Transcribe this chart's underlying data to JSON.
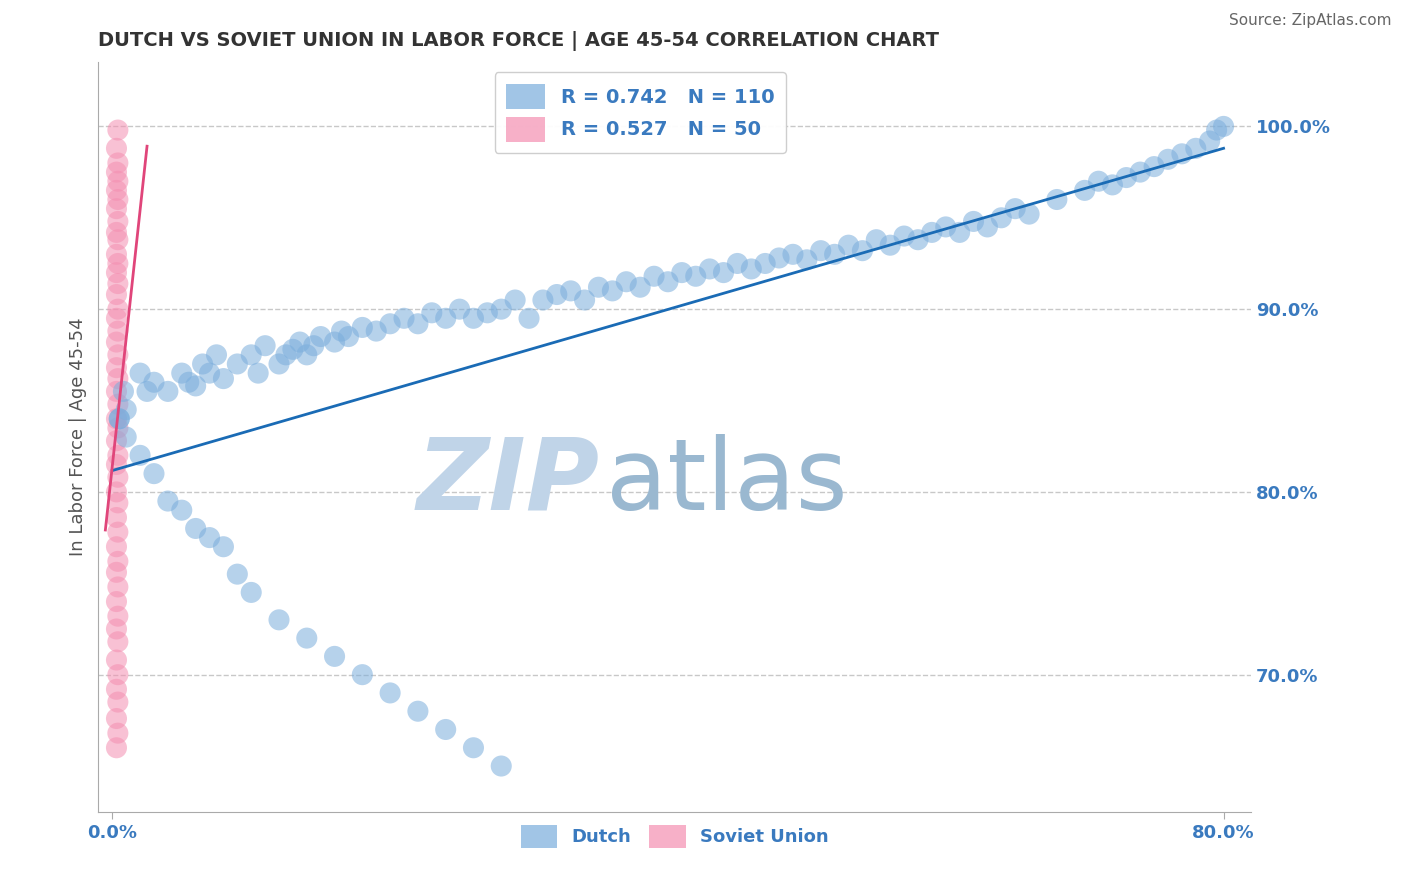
{
  "title": "DUTCH VS SOVIET UNION IN LABOR FORCE | AGE 45-54 CORRELATION CHART",
  "source": "Source: ZipAtlas.com",
  "ylabel": "In Labor Force | Age 45-54",
  "xlim": [
    -0.01,
    0.82
  ],
  "ylim": [
    0.625,
    1.035
  ],
  "ytick_right": [
    0.7,
    0.8,
    0.9,
    1.0
  ],
  "ytick_right_labels": [
    "70.0%",
    "80.0%",
    "90.0%",
    "100.0%"
  ],
  "xtick_vals": [
    0.0,
    0.8
  ],
  "xtick_labels": [
    "0.0%",
    "80.0%"
  ],
  "grid_color": "#c8c8c8",
  "background_color": "#ffffff",
  "dutch_color": "#7aaddc",
  "soviet_color": "#f48fb1",
  "dutch_line_color": "#1a6bb5",
  "soviet_line_color": "#e0457a",
  "dutch_R": 0.742,
  "dutch_N": 110,
  "soviet_R": 0.527,
  "soviet_N": 50,
  "title_fontsize": 14,
  "tick_fontsize": 13,
  "ylabel_fontsize": 13,
  "legend_fontsize": 14,
  "watermark_zip_color": "#c0d4e8",
  "watermark_atlas_color": "#9ab8d0",
  "dutch_x": [
    0.005,
    0.008,
    0.01,
    0.02,
    0.025,
    0.03,
    0.04,
    0.05,
    0.055,
    0.06,
    0.065,
    0.07,
    0.075,
    0.08,
    0.09,
    0.1,
    0.105,
    0.11,
    0.12,
    0.125,
    0.13,
    0.135,
    0.14,
    0.145,
    0.15,
    0.16,
    0.165,
    0.17,
    0.18,
    0.19,
    0.2,
    0.21,
    0.22,
    0.23,
    0.24,
    0.25,
    0.26,
    0.27,
    0.28,
    0.29,
    0.3,
    0.31,
    0.32,
    0.33,
    0.34,
    0.35,
    0.36,
    0.37,
    0.38,
    0.39,
    0.4,
    0.41,
    0.42,
    0.43,
    0.44,
    0.45,
    0.46,
    0.47,
    0.48,
    0.49,
    0.5,
    0.51,
    0.52,
    0.53,
    0.54,
    0.55,
    0.56,
    0.57,
    0.58,
    0.59,
    0.6,
    0.61,
    0.62,
    0.63,
    0.64,
    0.65,
    0.66,
    0.68,
    0.7,
    0.71,
    0.72,
    0.73,
    0.74,
    0.75,
    0.76,
    0.77,
    0.78,
    0.79,
    0.795,
    0.8,
    0.005,
    0.01,
    0.02,
    0.03,
    0.04,
    0.05,
    0.06,
    0.07,
    0.08,
    0.09,
    0.1,
    0.12,
    0.14,
    0.16,
    0.18,
    0.2,
    0.22,
    0.24,
    0.26,
    0.28
  ],
  "dutch_y": [
    0.84,
    0.855,
    0.845,
    0.865,
    0.855,
    0.86,
    0.855,
    0.865,
    0.86,
    0.858,
    0.87,
    0.865,
    0.875,
    0.862,
    0.87,
    0.875,
    0.865,
    0.88,
    0.87,
    0.875,
    0.878,
    0.882,
    0.875,
    0.88,
    0.885,
    0.882,
    0.888,
    0.885,
    0.89,
    0.888,
    0.892,
    0.895,
    0.892,
    0.898,
    0.895,
    0.9,
    0.895,
    0.898,
    0.9,
    0.905,
    0.895,
    0.905,
    0.908,
    0.91,
    0.905,
    0.912,
    0.91,
    0.915,
    0.912,
    0.918,
    0.915,
    0.92,
    0.918,
    0.922,
    0.92,
    0.925,
    0.922,
    0.925,
    0.928,
    0.93,
    0.927,
    0.932,
    0.93,
    0.935,
    0.932,
    0.938,
    0.935,
    0.94,
    0.938,
    0.942,
    0.945,
    0.942,
    0.948,
    0.945,
    0.95,
    0.955,
    0.952,
    0.96,
    0.965,
    0.97,
    0.968,
    0.972,
    0.975,
    0.978,
    0.982,
    0.985,
    0.988,
    0.992,
    0.998,
    1.0,
    0.84,
    0.83,
    0.82,
    0.81,
    0.795,
    0.79,
    0.78,
    0.775,
    0.77,
    0.755,
    0.745,
    0.73,
    0.72,
    0.71,
    0.7,
    0.69,
    0.68,
    0.67,
    0.66,
    0.65
  ],
  "soviet_x": [
    0.003,
    0.004,
    0.003,
    0.004,
    0.003,
    0.004,
    0.003,
    0.004,
    0.003,
    0.004,
    0.003,
    0.004,
    0.003,
    0.004,
    0.003,
    0.004,
    0.003,
    0.004,
    0.003,
    0.004,
    0.003,
    0.004,
    0.003,
    0.004,
    0.003,
    0.004,
    0.003,
    0.004,
    0.003,
    0.004,
    0.003,
    0.004,
    0.003,
    0.004,
    0.003,
    0.004,
    0.003,
    0.004,
    0.003,
    0.004,
    0.003,
    0.004,
    0.003,
    0.004,
    0.003,
    0.004,
    0.003,
    0.004,
    0.003,
    0.004
  ],
  "soviet_y": [
    0.66,
    0.668,
    0.676,
    0.685,
    0.692,
    0.7,
    0.708,
    0.718,
    0.725,
    0.732,
    0.74,
    0.748,
    0.756,
    0.762,
    0.77,
    0.778,
    0.786,
    0.794,
    0.8,
    0.808,
    0.815,
    0.82,
    0.828,
    0.835,
    0.84,
    0.848,
    0.855,
    0.862,
    0.868,
    0.875,
    0.882,
    0.888,
    0.895,
    0.9,
    0.908,
    0.914,
    0.92,
    0.925,
    0.93,
    0.938,
    0.942,
    0.948,
    0.955,
    0.96,
    0.965,
    0.97,
    0.975,
    0.98,
    0.988,
    0.998
  ]
}
